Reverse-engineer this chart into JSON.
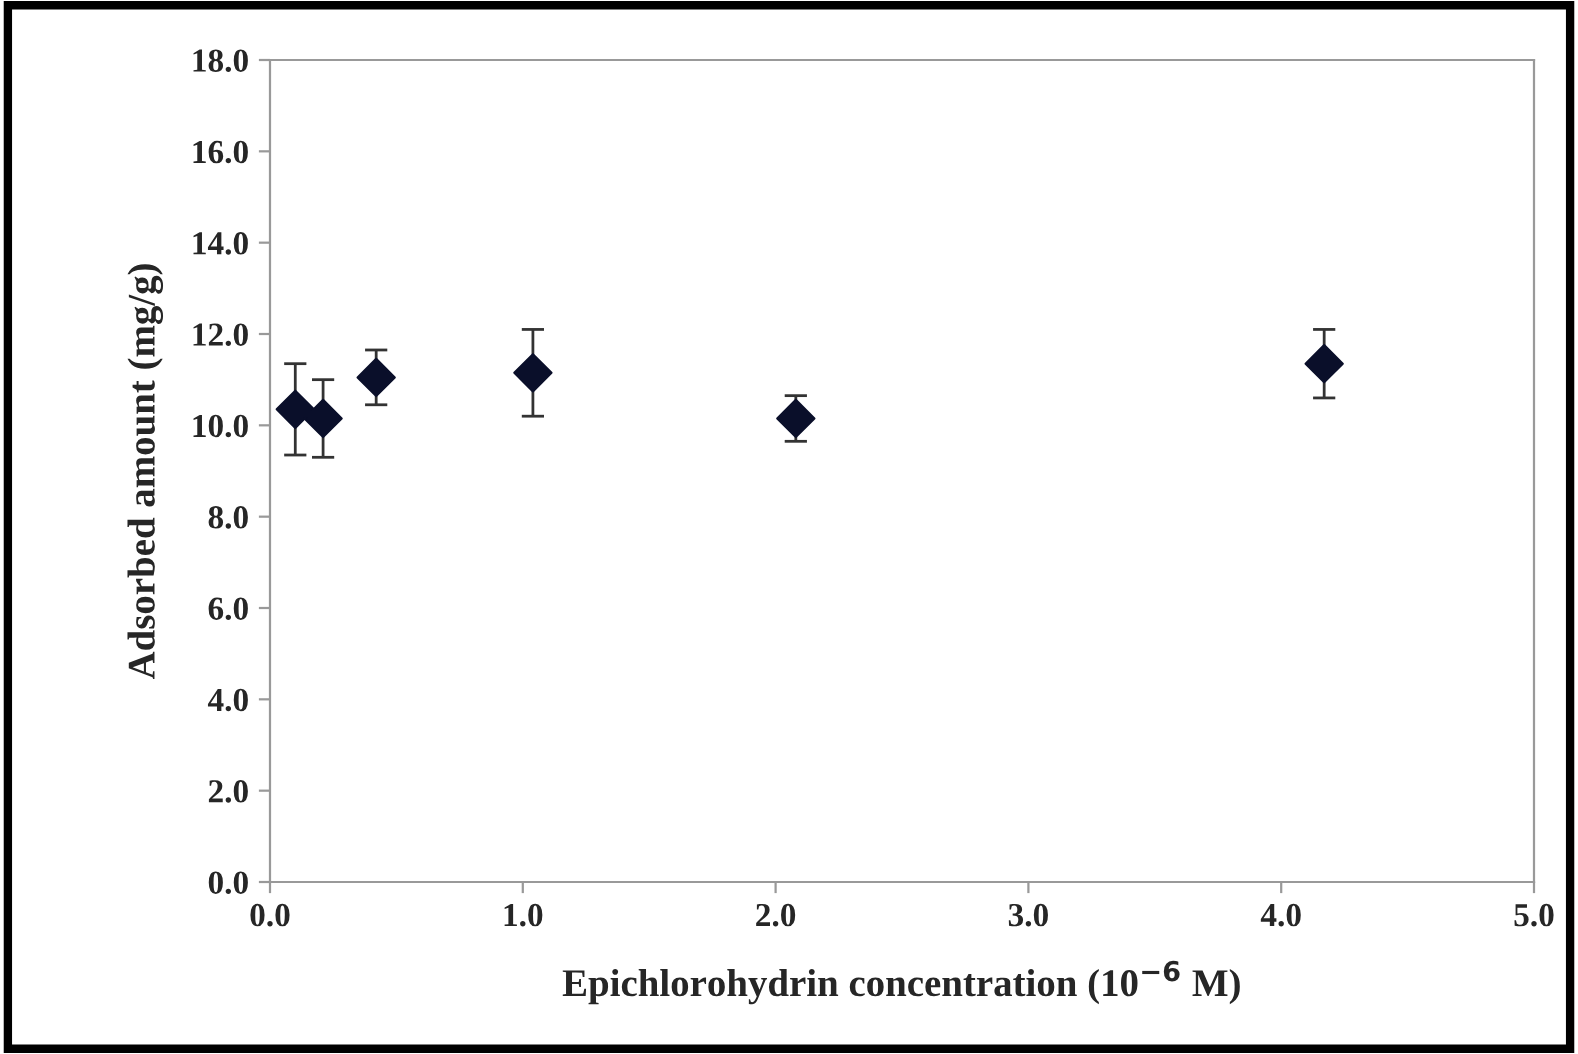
{
  "chart_data": {
    "type": "scatter",
    "xlabel": "Epichlorohydrin concentration (10$^{−6}$ M)",
    "ylabel": "Adsorbed amount (mg/g)",
    "x": [
      0.1,
      0.21,
      0.42,
      1.04,
      2.08,
      4.17
    ],
    "series": [
      {
        "color": "#0a0f2a",
        "values": [
          10.35,
          10.15,
          11.05,
          11.15,
          10.15,
          11.35
        ],
        "errors": [
          1.0,
          0.85,
          0.6,
          0.95,
          0.5,
          0.75
        ]
      }
    ],
    "marker": "diamond",
    "xlim": [
      0,
      5
    ],
    "xticks": [
      {
        "value": 0,
        "label": "0.0"
      },
      {
        "value": 1,
        "label": "1.0"
      },
      {
        "value": 2,
        "label": "2.0"
      },
      {
        "value": 3,
        "label": "3.0"
      },
      {
        "value": 4,
        "label": "4.0"
      },
      {
        "value": 5,
        "label": "5.0"
      }
    ],
    "ylim": [
      0,
      18
    ],
    "yticks": [
      {
        "value": 0,
        "label": "0.0"
      },
      {
        "value": 2,
        "label": "2.0"
      },
      {
        "value": 4,
        "label": "4.0"
      },
      {
        "value": 6,
        "label": "6.0"
      },
      {
        "value": 8,
        "label": "8.0"
      },
      {
        "value": 10,
        "label": "10.0"
      },
      {
        "value": 12,
        "label": "12.0"
      },
      {
        "value": 14,
        "label": "14.0"
      },
      {
        "value": 16,
        "label": "16.0"
      },
      {
        "value": 18,
        "label": "18.0"
      }
    ],
    "grid": false,
    "legend": false
  }
}
